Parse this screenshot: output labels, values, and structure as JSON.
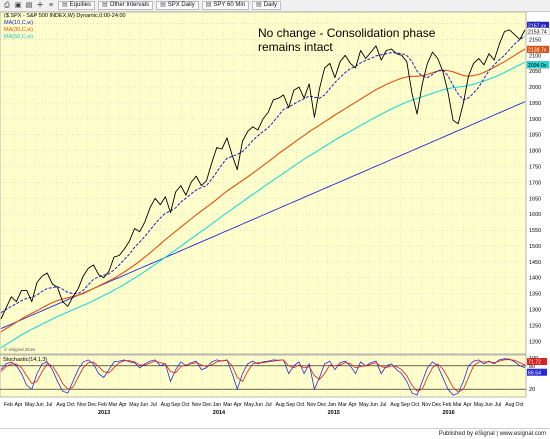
{
  "toolbar": {
    "equities_label": "Equities",
    "intervals_label": "Other Intervals",
    "spx_daily_label": "SPX Daily",
    "spy60_label": "SPY 60 Min",
    "daily_label": "Daily"
  },
  "legend": {
    "series_title": "($.SPX - S&P 500 INDEX,W) Dynamic,0:00-24:00",
    "ma1": "MA(10,C,w)",
    "ma2": "MA(30,C,w)",
    "ma3": "MA(50,C,w)"
  },
  "osc_legend": "Stochastic(14,1,3)",
  "copyright": "© eSignal 2016",
  "footer": "Published by eSignal | www.esignal.com",
  "colors": {
    "plot_bg": "#ffffcc",
    "price": "#000000",
    "ma1": "#2020c0",
    "ma2": "#e05010",
    "ma3": "#20d8d8",
    "trendline": "#2828d8",
    "stoch_k": "#2828d8",
    "stoch_d": "#d82020",
    "grid": "#b8c8d8"
  },
  "chart_data": [
    {
      "type": "line",
      "title": "No change - Consolidation phase\nremains intact",
      "price_labels": [
        "2167.xx",
        "2153.74",
        "2138.7x",
        "2094.0x"
      ],
      "y_ticks": [
        1200,
        1250,
        1300,
        1350,
        1400,
        1450,
        1500,
        1550,
        1600,
        1650,
        1700,
        1750,
        1800,
        1850,
        1900,
        1950,
        2000,
        2050,
        2100,
        2150,
        2200
      ],
      "ylim": [
        1160,
        2230
      ],
      "x_month_labels": [
        "Feb",
        "Apr",
        "May",
        "Jun",
        "Jul",
        "Aug",
        "Oct",
        "Nov",
        "Dec",
        "Feb",
        "Mar",
        "Apr",
        "May",
        "Jun",
        "Jul",
        "Aug",
        "Sep",
        "Oct",
        "Nov",
        "Dec",
        "Jan",
        "Mar",
        "Apr",
        "May",
        "Jun",
        "Jul",
        "Aug",
        "Sep",
        "Oct",
        "Nov",
        "Dec",
        "Jan",
        "Mar",
        "Apr",
        "May",
        "Jun",
        "Jul",
        "Aug",
        "Sep",
        "Oct",
        "Nov",
        "Dec",
        "Feb",
        "Mar",
        "Apr",
        "May",
        "Jun",
        "Jul",
        "Aug",
        "Oct"
      ],
      "x_year_labels": [
        "2013",
        "2014",
        "2015",
        "2016"
      ],
      "series": [
        {
          "name": "",
          "role": "price",
          "values": [
            1270,
            1305,
            1340,
            1325,
            1360,
            1360,
            1325,
            1385,
            1405,
            1415,
            1380,
            1370,
            1325,
            1310,
            1340,
            1365,
            1405,
            1430,
            1440,
            1410,
            1400,
            1420,
            1465,
            1470,
            1490,
            1515,
            1555,
            1545,
            1575,
            1620,
            1650,
            1630,
            1655,
            1605,
            1670,
            1690,
            1660,
            1700,
            1720,
            1690,
            1705,
            1760,
            1810,
            1805,
            1840,
            1785,
            1740,
            1830,
            1860,
            1875,
            1865,
            1900,
            1920,
            1960,
            1965,
            1975,
            1935,
            1990,
            2000,
            1965,
            2010,
            1905,
            1995,
            2060,
            2075,
            2030,
            2080,
            2100,
            2075,
            2060,
            2115,
            2090,
            2110,
            2130,
            2085,
            2115,
            2120,
            2105,
            2100,
            2080,
            1980,
            1915,
            2010,
            2075,
            2110,
            2090,
            2050,
            1985,
            1895,
            1885,
            1950,
            2035,
            2075,
            2090,
            2070,
            2105,
            2085,
            2135,
            2175,
            2180,
            2165,
            2150,
            2180
          ]
        },
        {
          "name": "MA(10,C,w)",
          "role": "ma1",
          "values": [
            1290,
            1300,
            1310,
            1318,
            1328,
            1335,
            1338,
            1346,
            1357,
            1366,
            1369,
            1372,
            1364,
            1354,
            1350,
            1350,
            1360,
            1378,
            1395,
            1403,
            1408,
            1412,
            1425,
            1440,
            1458,
            1474,
            1496,
            1512,
            1530,
            1550,
            1570,
            1588,
            1603,
            1610,
            1620,
            1638,
            1650,
            1664,
            1676,
            1684,
            1690,
            1710,
            1733,
            1756,
            1776,
            1782,
            1788,
            1797,
            1813,
            1832,
            1847,
            1860,
            1872,
            1890,
            1910,
            1930,
            1937,
            1946,
            1956,
            1963,
            1972,
            1968,
            1965,
            1975,
            1995,
            2014,
            2030,
            2046,
            2058,
            2065,
            2076,
            2084,
            2090,
            2098,
            2102,
            2105,
            2108,
            2108,
            2105,
            2100,
            2080,
            2050,
            2034,
            2030,
            2040,
            2052,
            2054,
            2036,
            2005,
            1978,
            1960,
            1966,
            1981,
            2000,
            2026,
            2052,
            2070,
            2086,
            2100,
            2118,
            2136,
            2150,
            2160
          ]
        },
        {
          "name": "MA(30,C,w)",
          "role": "ma2",
          "values": [
            1230,
            1240,
            1250,
            1260,
            1270,
            1280,
            1288,
            1296,
            1305,
            1314,
            1322,
            1328,
            1333,
            1337,
            1341,
            1345,
            1350,
            1358,
            1366,
            1374,
            1382,
            1390,
            1398,
            1408,
            1418,
            1429,
            1440,
            1452,
            1465,
            1478,
            1492,
            1506,
            1520,
            1533,
            1546,
            1559,
            1572,
            1585,
            1598,
            1610,
            1622,
            1634,
            1647,
            1660,
            1673,
            1684,
            1695,
            1706,
            1717,
            1729,
            1741,
            1753,
            1765,
            1777,
            1790,
            1802,
            1813,
            1825,
            1837,
            1848,
            1860,
            1870,
            1880,
            1891,
            1901,
            1912,
            1922,
            1932,
            1942,
            1952,
            1962,
            1972,
            1982,
            1992,
            2000,
            2008,
            2015,
            2022,
            2028,
            2032,
            2034,
            2034,
            2036,
            2040,
            2045,
            2050,
            2053,
            2052,
            2048,
            2042,
            2036,
            2034,
            2036,
            2040,
            2046,
            2054,
            2062,
            2071,
            2080,
            2090,
            2100,
            2110,
            2120
          ]
        },
        {
          "name": "MA(50,C,w)",
          "role": "ma3",
          "values": [
            1180,
            1190,
            1200,
            1210,
            1220,
            1229,
            1238,
            1246,
            1254,
            1262,
            1270,
            1278,
            1285,
            1292,
            1299,
            1306,
            1313,
            1320,
            1328,
            1336,
            1344,
            1352,
            1361,
            1370,
            1379,
            1389,
            1399,
            1409,
            1420,
            1431,
            1442,
            1453,
            1465,
            1476,
            1488,
            1499,
            1511,
            1523,
            1534,
            1546,
            1557,
            1569,
            1581,
            1593,
            1605,
            1616,
            1628,
            1639,
            1651,
            1662,
            1673,
            1685,
            1696,
            1707,
            1718,
            1729,
            1740,
            1751,
            1762,
            1773,
            1783,
            1793,
            1803,
            1813,
            1823,
            1833,
            1843,
            1852,
            1861,
            1870,
            1879,
            1888,
            1897,
            1906,
            1915,
            1923,
            1931,
            1939,
            1946,
            1953,
            1959,
            1964,
            1969,
            1975,
            1980,
            1986,
            1991,
            1995,
            1998,
            2000,
            2002,
            2005,
            2009,
            2014,
            2019,
            2025,
            2031,
            2038,
            2046,
            2054,
            2062,
            2070,
            2078
          ]
        },
        {
          "name": "",
          "role": "trendline",
          "values": [
            1240,
            1247,
            1254,
            1261,
            1268,
            1275,
            1282,
            1289,
            1296,
            1303,
            1310,
            1317,
            1324,
            1331,
            1338,
            1345,
            1352,
            1359,
            1366,
            1373,
            1380,
            1387,
            1394,
            1401,
            1408,
            1415,
            1422,
            1429,
            1436,
            1443,
            1450,
            1457,
            1464,
            1471,
            1478,
            1485,
            1492,
            1499,
            1506,
            1513,
            1520,
            1527,
            1534,
            1541,
            1548,
            1555,
            1562,
            1569,
            1576,
            1583,
            1590,
            1597,
            1604,
            1611,
            1618,
            1625,
            1632,
            1639,
            1646,
            1653,
            1660,
            1667,
            1674,
            1681,
            1688,
            1695,
            1702,
            1709,
            1716,
            1723,
            1730,
            1737,
            1744,
            1751,
            1758,
            1765,
            1772,
            1779,
            1786,
            1793,
            1800,
            1807,
            1814,
            1821,
            1828,
            1835,
            1842,
            1849,
            1856,
            1863,
            1870,
            1877,
            1884,
            1891,
            1898,
            1905,
            1912,
            1919,
            1926,
            1933,
            1940,
            1947,
            1954
          ]
        }
      ]
    },
    {
      "type": "line",
      "title": "",
      "ylim": [
        0,
        100
      ],
      "y_ticks": [
        20,
        80,
        100
      ],
      "osc_labels": [
        "71.72",
        "66.54"
      ],
      "series": [
        {
          "name": "",
          "role": "stoch_k",
          "values": [
            70,
            85,
            90,
            80,
            60,
            30,
            20,
            60,
            85,
            90,
            70,
            40,
            15,
            10,
            40,
            70,
            90,
            95,
            85,
            60,
            50,
            70,
            90,
            92,
            95,
            90,
            88,
            75,
            85,
            92,
            95,
            80,
            85,
            40,
            70,
            90,
            80,
            88,
            92,
            70,
            75,
            90,
            95,
            92,
            95,
            60,
            20,
            60,
            85,
            92,
            85,
            90,
            92,
            95,
            94,
            95,
            60,
            80,
            90,
            60,
            85,
            20,
            50,
            85,
            92,
            70,
            88,
            92,
            80,
            60,
            90,
            80,
            88,
            92,
            60,
            80,
            85,
            70,
            60,
            40,
            10,
            5,
            40,
            75,
            90,
            80,
            50,
            20,
            5,
            10,
            40,
            80,
            92,
            95,
            85,
            92,
            85,
            95,
            98,
            97,
            90,
            80,
            75
          ]
        },
        {
          "name": "",
          "role": "stoch_d",
          "values": [
            65,
            78,
            85,
            84,
            75,
            55,
            35,
            40,
            65,
            85,
            80,
            60,
            35,
            20,
            25,
            50,
            75,
            88,
            90,
            78,
            65,
            62,
            75,
            88,
            93,
            93,
            90,
            82,
            82,
            87,
            92,
            88,
            85,
            65,
            62,
            78,
            82,
            85,
            88,
            82,
            78,
            82,
            90,
            93,
            94,
            80,
            50,
            40,
            65,
            85,
            88,
            88,
            90,
            92,
            94,
            95,
            80,
            75,
            82,
            75,
            78,
            55,
            45,
            60,
            82,
            80,
            82,
            88,
            86,
            75,
            78,
            80,
            84,
            88,
            78,
            75,
            80,
            78,
            70,
            55,
            30,
            15,
            20,
            50,
            75,
            85,
            72,
            50,
            25,
            12,
            20,
            50,
            80,
            90,
            90,
            90,
            88,
            92,
            95,
            96,
            94,
            88,
            82
          ]
        }
      ]
    }
  ]
}
